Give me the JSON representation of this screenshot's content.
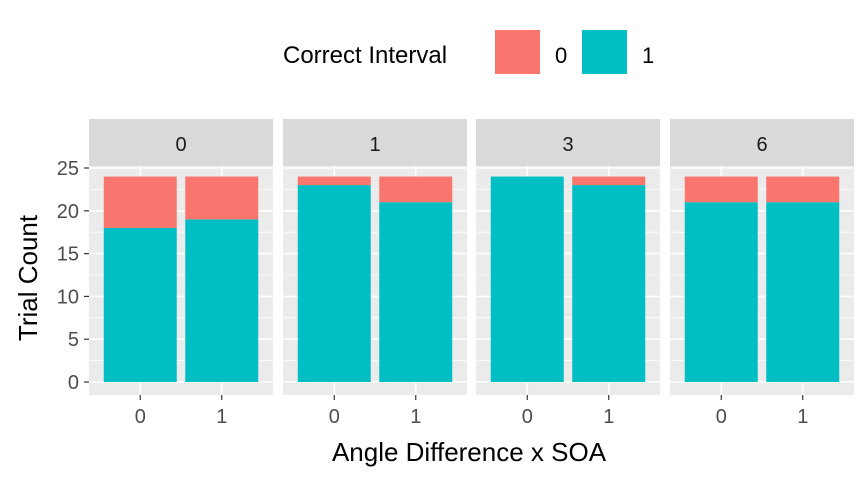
{
  "chart_data": {
    "type": "bar",
    "stacked": true,
    "facet_variable_title": "",
    "facets": [
      {
        "label": "0",
        "categories": [
          "0",
          "1"
        ],
        "series": [
          {
            "name": "1",
            "values": [
              18,
              19
            ]
          },
          {
            "name": "0",
            "values": [
              6,
              5
            ]
          }
        ]
      },
      {
        "label": "1",
        "categories": [
          "0",
          "1"
        ],
        "series": [
          {
            "name": "1",
            "values": [
              23,
              21
            ]
          },
          {
            "name": "0",
            "values": [
              1,
              3
            ]
          }
        ]
      },
      {
        "label": "3",
        "categories": [
          "0",
          "1"
        ],
        "series": [
          {
            "name": "1",
            "values": [
              24,
              23
            ]
          },
          {
            "name": "0",
            "values": [
              0,
              1
            ]
          }
        ]
      },
      {
        "label": "6",
        "categories": [
          "0",
          "1"
        ],
        "series": [
          {
            "name": "1",
            "values": [
              21,
              21
            ]
          },
          {
            "name": "0",
            "values": [
              3,
              3
            ]
          }
        ]
      }
    ],
    "legend": {
      "title": "Correct Interval",
      "position": "top",
      "entries": [
        {
          "name": "0",
          "color": "#F8766D"
        },
        {
          "name": "1",
          "color": "#00BFC4"
        }
      ]
    },
    "xlabel": "Angle Difference x SOA",
    "ylabel": "Trial Count",
    "ylim": [
      0,
      25
    ],
    "yticks": [
      0,
      5,
      10,
      15,
      20,
      25
    ],
    "grid": true,
    "panel_background": "#EBEBEB",
    "strip_background": "#D9D9D9",
    "grid_color": "#FFFFFF"
  }
}
